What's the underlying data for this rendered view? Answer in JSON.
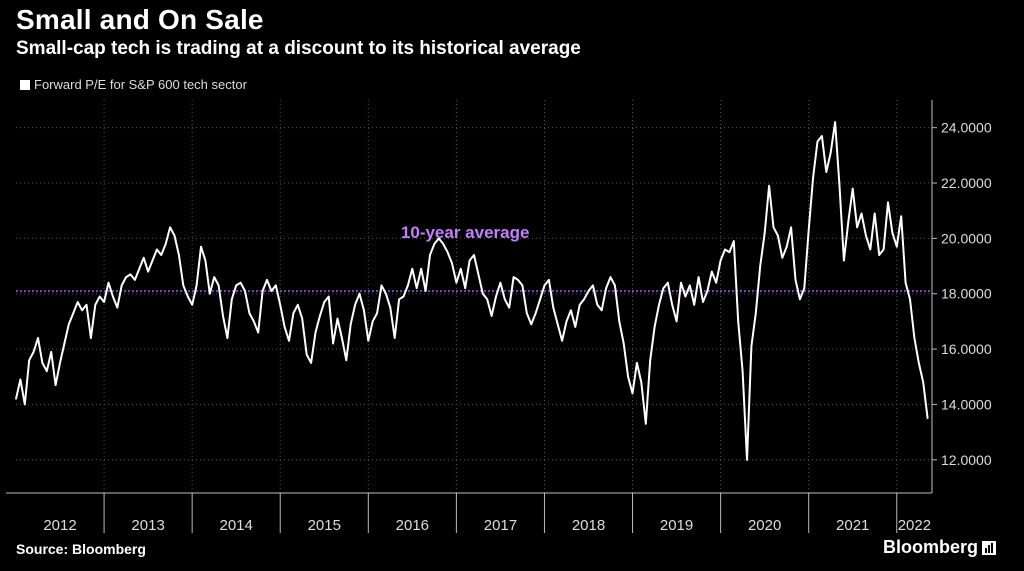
{
  "title": "Small and On Sale",
  "subtitle": "Small-cap tech is trading at a discount to its historical average",
  "source": "Source: Bloomberg",
  "brand": "Bloomberg",
  "colors": {
    "background": "#000000",
    "series": "#ffffff",
    "average_line": "#a855f7",
    "annotation": "#c77dff",
    "grid": "#555555"
  },
  "chart_data": {
    "type": "line",
    "legend": [
      "Forward P/E for S&P 600 tech sector"
    ],
    "legend_position": "top-left",
    "xlabel": "",
    "ylabel": "",
    "x_ticks": [
      "2012",
      "2013",
      "2014",
      "2015",
      "2016",
      "2017",
      "2018",
      "2019",
      "2020",
      "2021",
      "2022"
    ],
    "x_range": [
      2012.0,
      2022.4
    ],
    "ylim": [
      10.8,
      25.0
    ],
    "y_ticks": [
      "12.0000",
      "14.0000",
      "16.0000",
      "18.0000",
      "20.0000",
      "22.0000",
      "24.0000"
    ],
    "y_tick_values": [
      12,
      14,
      16,
      18,
      20,
      22,
      24
    ],
    "grid": true,
    "reference_line": {
      "label": "10-year average",
      "value": 18.1
    },
    "series": [
      {
        "name": "Forward P/E for S&P 600 tech sector",
        "x": [
          2012.0,
          2012.05,
          2012.1,
          2012.15,
          2012.2,
          2012.25,
          2012.3,
          2012.35,
          2012.4,
          2012.45,
          2012.5,
          2012.55,
          2012.6,
          2012.65,
          2012.7,
          2012.75,
          2012.8,
          2012.85,
          2012.9,
          2012.95,
          2013.0,
          2013.05,
          2013.1,
          2013.15,
          2013.2,
          2013.25,
          2013.3,
          2013.35,
          2013.4,
          2013.45,
          2013.5,
          2013.55,
          2013.6,
          2013.65,
          2013.7,
          2013.75,
          2013.8,
          2013.85,
          2013.9,
          2013.95,
          2014.0,
          2014.05,
          2014.1,
          2014.15,
          2014.2,
          2014.25,
          2014.3,
          2014.35,
          2014.4,
          2014.45,
          2014.5,
          2014.55,
          2014.6,
          2014.65,
          2014.7,
          2014.75,
          2014.8,
          2014.85,
          2014.9,
          2014.95,
          2015.0,
          2015.05,
          2015.1,
          2015.15,
          2015.2,
          2015.25,
          2015.3,
          2015.35,
          2015.4,
          2015.45,
          2015.5,
          2015.55,
          2015.6,
          2015.65,
          2015.7,
          2015.75,
          2015.8,
          2015.85,
          2015.9,
          2015.95,
          2016.0,
          2016.05,
          2016.1,
          2016.15,
          2016.2,
          2016.25,
          2016.3,
          2016.35,
          2016.4,
          2016.45,
          2016.5,
          2016.55,
          2016.6,
          2016.65,
          2016.7,
          2016.75,
          2016.8,
          2016.85,
          2016.9,
          2016.95,
          2017.0,
          2017.05,
          2017.1,
          2017.15,
          2017.2,
          2017.25,
          2017.3,
          2017.35,
          2017.4,
          2017.45,
          2017.5,
          2017.55,
          2017.6,
          2017.65,
          2017.7,
          2017.75,
          2017.8,
          2017.85,
          2017.9,
          2017.95,
          2018.0,
          2018.05,
          2018.1,
          2018.15,
          2018.2,
          2018.25,
          2018.3,
          2018.35,
          2018.4,
          2018.45,
          2018.5,
          2018.55,
          2018.6,
          2018.65,
          2018.7,
          2018.75,
          2018.8,
          2018.85,
          2018.9,
          2018.95,
          2019.0,
          2019.05,
          2019.1,
          2019.15,
          2019.2,
          2019.25,
          2019.3,
          2019.35,
          2019.4,
          2019.45,
          2019.5,
          2019.55,
          2019.6,
          2019.65,
          2019.7,
          2019.75,
          2019.8,
          2019.85,
          2019.9,
          2019.95,
          2020.0,
          2020.05,
          2020.1,
          2020.15,
          2020.2,
          2020.25,
          2020.3,
          2020.35,
          2020.4,
          2020.45,
          2020.5,
          2020.55,
          2020.6,
          2020.65,
          2020.7,
          2020.75,
          2020.8,
          2020.85,
          2020.9,
          2020.95,
          2021.0,
          2021.05,
          2021.1,
          2021.15,
          2021.2,
          2021.25,
          2021.3,
          2021.35,
          2021.4,
          2021.45,
          2021.5,
          2021.55,
          2021.6,
          2021.65,
          2021.7,
          2021.75,
          2021.8,
          2021.85,
          2021.9,
          2021.95,
          2022.0,
          2022.05,
          2022.1,
          2022.15,
          2022.2,
          2022.25,
          2022.3,
          2022.35
        ],
        "y": [
          14.2,
          14.9,
          14.0,
          15.6,
          15.9,
          16.4,
          15.5,
          15.2,
          15.9,
          14.7,
          15.5,
          16.2,
          16.9,
          17.3,
          17.7,
          17.4,
          17.6,
          16.4,
          17.6,
          17.9,
          17.7,
          18.4,
          17.9,
          17.5,
          18.3,
          18.6,
          18.7,
          18.5,
          18.9,
          19.3,
          18.8,
          19.2,
          19.6,
          19.4,
          19.8,
          20.4,
          20.1,
          19.4,
          18.3,
          17.9,
          17.6,
          18.3,
          19.7,
          19.2,
          18.0,
          18.6,
          18.3,
          17.2,
          16.4,
          17.8,
          18.3,
          18.4,
          18.1,
          17.3,
          17.0,
          16.6,
          18.1,
          18.5,
          18.1,
          18.3,
          17.6,
          16.8,
          16.3,
          17.3,
          17.6,
          17.1,
          15.8,
          15.5,
          16.6,
          17.2,
          17.7,
          17.9,
          16.2,
          17.1,
          16.4,
          15.6,
          16.9,
          17.6,
          18.0,
          17.4,
          16.3,
          17.0,
          17.3,
          18.3,
          18.0,
          17.5,
          16.4,
          17.8,
          17.9,
          18.3,
          18.9,
          18.2,
          18.9,
          18.1,
          19.4,
          19.8,
          20.0,
          19.8,
          19.5,
          19.1,
          18.4,
          18.9,
          18.2,
          19.2,
          19.4,
          18.7,
          18.0,
          17.8,
          17.2,
          17.9,
          18.4,
          17.8,
          17.5,
          18.6,
          18.5,
          18.3,
          17.3,
          16.9,
          17.3,
          17.8,
          18.3,
          18.5,
          17.5,
          16.9,
          16.3,
          17.0,
          17.4,
          16.8,
          17.6,
          17.8,
          18.1,
          18.3,
          17.6,
          17.4,
          18.2,
          18.6,
          18.3,
          17.0,
          16.2,
          15.0,
          14.4,
          15.5,
          14.8,
          13.3,
          15.6,
          16.8,
          17.6,
          18.2,
          18.4,
          17.6,
          17.0,
          18.4,
          17.9,
          18.3,
          17.6,
          18.6,
          17.7,
          18.1,
          18.8,
          18.4,
          19.2,
          19.6,
          19.5,
          19.9,
          17.0,
          15.2,
          12.0,
          16.1,
          17.3,
          19.0,
          20.2,
          21.9,
          20.4,
          20.1,
          19.3,
          19.7,
          20.4,
          18.5,
          17.8,
          18.2,
          20.3,
          22.2,
          23.5,
          23.7,
          22.4,
          23.1,
          24.2,
          21.9,
          19.2,
          20.6,
          21.8,
          20.4,
          20.9,
          20.1,
          19.6,
          20.9,
          19.4,
          19.6,
          21.3,
          20.2,
          19.7,
          20.8,
          18.4,
          17.8,
          16.4,
          15.5,
          14.8,
          13.5
        ]
      }
    ]
  }
}
